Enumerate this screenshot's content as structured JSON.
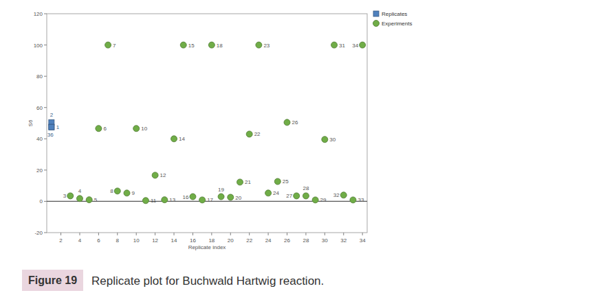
{
  "chart_data": {
    "type": "scatter",
    "x_label": "Replicate index",
    "y_label": "S6",
    "xlim": [
      0.5,
      34.5
    ],
    "ylim": [
      -20,
      120
    ],
    "xticks": [
      2,
      4,
      6,
      8,
      10,
      12,
      14,
      16,
      18,
      20,
      22,
      24,
      26,
      28,
      30,
      32,
      34
    ],
    "yticks": [
      -20,
      0,
      20,
      40,
      60,
      80,
      100,
      120
    ],
    "reference_line": 0,
    "grid": false,
    "legend": "top-right",
    "series": [
      {
        "name": "Replicates",
        "color": "#4f81bd",
        "marker": "square",
        "x": [
          1,
          1,
          1
        ],
        "values": [
          50.5,
          47.5,
          47.5
        ],
        "labels": [
          "2",
          "1",
          "36"
        ]
      },
      {
        "name": "Experiments",
        "color": "#70ad47",
        "marker": "circle",
        "x": [
          3,
          4,
          5,
          6,
          7,
          8,
          9,
          10,
          11,
          12,
          13,
          14,
          15,
          16,
          17,
          18,
          19,
          20,
          21,
          22,
          23,
          24,
          25,
          26,
          27,
          28,
          29,
          30,
          31,
          32,
          33,
          34
        ],
        "values": [
          3.5,
          1.8,
          1,
          46.6,
          100,
          6.6,
          5.3,
          46.6,
          0.5,
          16.7,
          1,
          40,
          100,
          3,
          0.9,
          100,
          3,
          2.6,
          12.3,
          43,
          100,
          5.3,
          12.7,
          50.5,
          3.5,
          3.5,
          0.9,
          39.6,
          100,
          4,
          0.9,
          100
        ],
        "labels": [
          "3",
          "4",
          "5",
          "6",
          "7",
          "8",
          "9",
          "10",
          "11",
          "12",
          "13",
          "14",
          "15",
          "16",
          "17",
          "18",
          "19",
          "20",
          "21",
          "22",
          "23",
          "24",
          "25",
          "26",
          "27",
          "28",
          "29",
          "30",
          "31",
          "32",
          "33",
          "34"
        ]
      }
    ]
  },
  "caption": {
    "label": "Figure 19",
    "text": "Replicate plot for Buchwald Hartwig reaction."
  }
}
